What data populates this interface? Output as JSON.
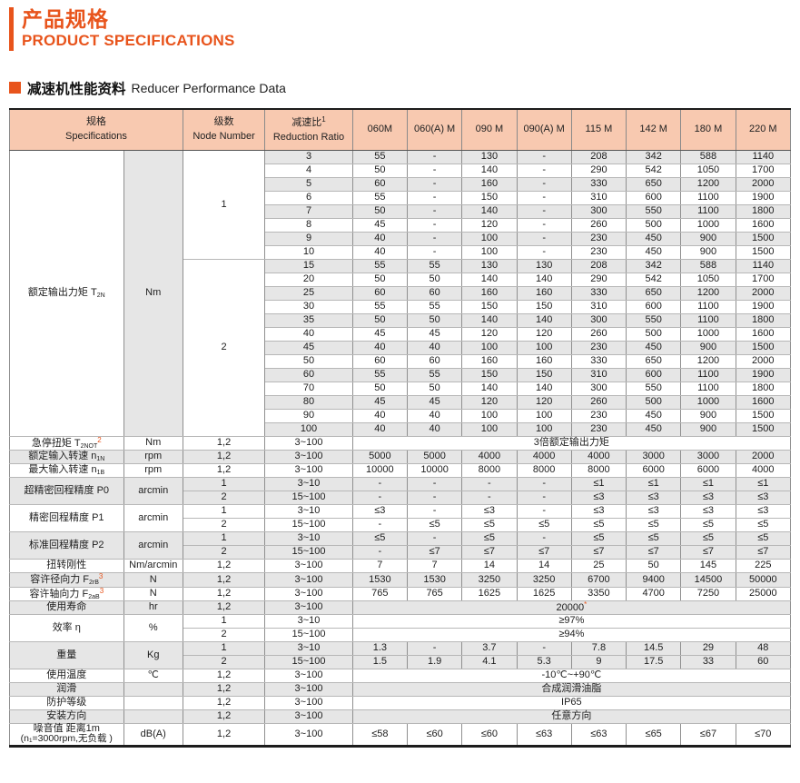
{
  "page": {
    "title_cn": "产品规格",
    "title_en": "PRODUCT SPECIFICATIONS",
    "section_cn": "减速机性能资料",
    "section_en": "Reducer Performance Data"
  },
  "colors": {
    "accent": "#e8541c",
    "header_bg": "#f8c9b0",
    "stripe": "#e6e6e6"
  },
  "table": {
    "header": {
      "spec_cn": "规格",
      "spec_en": "Specifications",
      "node_cn": "级数",
      "node_en": "Node Number",
      "ratio_cn": "减速比",
      "ratio_sup": "1",
      "ratio_en": "Reduction Ratio",
      "models": [
        "060M",
        "060(A) M",
        "090 M",
        "090(A) M",
        "115 M",
        "142 M",
        "180 M",
        "220 M"
      ]
    },
    "torque": {
      "label": {
        "cn": "额定输出力矩",
        "sym": "T",
        "sub": "2N"
      },
      "unit": "Nm",
      "groups": [
        {
          "node": "1",
          "rows": [
            {
              "ratio": "3",
              "values": [
                "55",
                "-",
                "130",
                "-",
                "208",
                "342",
                "588",
                "1140"
              ]
            },
            {
              "ratio": "4",
              "values": [
                "50",
                "-",
                "140",
                "-",
                "290",
                "542",
                "1050",
                "1700"
              ]
            },
            {
              "ratio": "5",
              "values": [
                "60",
                "-",
                "160",
                "-",
                "330",
                "650",
                "1200",
                "2000"
              ]
            },
            {
              "ratio": "6",
              "values": [
                "55",
                "-",
                "150",
                "-",
                "310",
                "600",
                "1100",
                "1900"
              ]
            },
            {
              "ratio": "7",
              "values": [
                "50",
                "-",
                "140",
                "-",
                "300",
                "550",
                "1100",
                "1800"
              ]
            },
            {
              "ratio": "8",
              "values": [
                "45",
                "-",
                "120",
                "-",
                "260",
                "500",
                "1000",
                "1600"
              ]
            },
            {
              "ratio": "9",
              "values": [
                "40",
                "-",
                "100",
                "-",
                "230",
                "450",
                "900",
                "1500"
              ]
            },
            {
              "ratio": "10",
              "values": [
                "40",
                "-",
                "100",
                "-",
                "230",
                "450",
                "900",
                "1500"
              ]
            }
          ]
        },
        {
          "node": "2",
          "rows": [
            {
              "ratio": "15",
              "values": [
                "55",
                "55",
                "130",
                "130",
                "208",
                "342",
                "588",
                "1140"
              ]
            },
            {
              "ratio": "20",
              "values": [
                "50",
                "50",
                "140",
                "140",
                "290",
                "542",
                "1050",
                "1700"
              ]
            },
            {
              "ratio": "25",
              "values": [
                "60",
                "60",
                "160",
                "160",
                "330",
                "650",
                "1200",
                "2000"
              ]
            },
            {
              "ratio": "30",
              "values": [
                "55",
                "55",
                "150",
                "150",
                "310",
                "600",
                "1100",
                "1900"
              ]
            },
            {
              "ratio": "35",
              "values": [
                "50",
                "50",
                "140",
                "140",
                "300",
                "550",
                "1100",
                "1800"
              ]
            },
            {
              "ratio": "40",
              "values": [
                "45",
                "45",
                "120",
                "120",
                "260",
                "500",
                "1000",
                "1600"
              ]
            },
            {
              "ratio": "45",
              "values": [
                "40",
                "40",
                "100",
                "100",
                "230",
                "450",
                "900",
                "1500"
              ]
            },
            {
              "ratio": "50",
              "values": [
                "60",
                "60",
                "160",
                "160",
                "330",
                "650",
                "1200",
                "2000"
              ]
            },
            {
              "ratio": "60",
              "values": [
                "55",
                "55",
                "150",
                "150",
                "310",
                "600",
                "1100",
                "1900"
              ]
            },
            {
              "ratio": "70",
              "values": [
                "50",
                "50",
                "140",
                "140",
                "300",
                "550",
                "1100",
                "1800"
              ]
            },
            {
              "ratio": "80",
              "values": [
                "45",
                "45",
                "120",
                "120",
                "260",
                "500",
                "1000",
                "1600"
              ]
            },
            {
              "ratio": "90",
              "values": [
                "40",
                "40",
                "100",
                "100",
                "230",
                "450",
                "900",
                "1500"
              ]
            },
            {
              "ratio": "100",
              "values": [
                "40",
                "40",
                "100",
                "100",
                "230",
                "450",
                "900",
                "1500"
              ]
            }
          ]
        }
      ]
    },
    "rows": [
      {
        "label": {
          "cn": "急停扭矩",
          "sym": "T",
          "sub": "2NOT",
          "fn": "2"
        },
        "unit": "Nm",
        "gray": false,
        "sub": [
          {
            "node": "1,2",
            "ratio": "3~100",
            "merged": "3倍额定输出力矩"
          }
        ]
      },
      {
        "label": {
          "cn": "额定输入转速",
          "sym": "n",
          "sub": "1N"
        },
        "unit": "rpm",
        "gray": true,
        "sub": [
          {
            "node": "1,2",
            "ratio": "3~100",
            "values": [
              "5000",
              "5000",
              "4000",
              "4000",
              "4000",
              "3000",
              "3000",
              "2000"
            ]
          }
        ]
      },
      {
        "label": {
          "cn": "最大输入转速",
          "sym": "n",
          "sub": "1B"
        },
        "unit": "rpm",
        "gray": false,
        "sub": [
          {
            "node": "1,2",
            "ratio": "3~100",
            "values": [
              "10000",
              "10000",
              "8000",
              "8000",
              "8000",
              "6000",
              "6000",
              "4000"
            ]
          }
        ]
      },
      {
        "label": {
          "cn": "超精密回程精度 P0"
        },
        "unit": "arcmin",
        "gray": true,
        "sub": [
          {
            "node": "1",
            "ratio": "3~10",
            "values": [
              "-",
              "-",
              "-",
              "-",
              "≤1",
              "≤1",
              "≤1",
              "≤1"
            ]
          },
          {
            "node": "2",
            "ratio": "15~100",
            "values": [
              "-",
              "-",
              "-",
              "-",
              "≤3",
              "≤3",
              "≤3",
              "≤3"
            ]
          }
        ]
      },
      {
        "label": {
          "cn": "精密回程精度 P1"
        },
        "unit": "arcmin",
        "gray": false,
        "sub": [
          {
            "node": "1",
            "ratio": "3~10",
            "values": [
              "≤3",
              "-",
              "≤3",
              "-",
              "≤3",
              "≤3",
              "≤3",
              "≤3"
            ]
          },
          {
            "node": "2",
            "ratio": "15~100",
            "values": [
              "-",
              "≤5",
              "≤5",
              "≤5",
              "≤5",
              "≤5",
              "≤5",
              "≤5"
            ]
          }
        ]
      },
      {
        "label": {
          "cn": "标准回程精度 P2"
        },
        "unit": "arcmin",
        "gray": true,
        "sub": [
          {
            "node": "1",
            "ratio": "3~10",
            "values": [
              "≤5",
              "-",
              "≤5",
              "-",
              "≤5",
              "≤5",
              "≤5",
              "≤5"
            ]
          },
          {
            "node": "2",
            "ratio": "15~100",
            "values": [
              "-",
              "≤7",
              "≤7",
              "≤7",
              "≤7",
              "≤7",
              "≤7",
              "≤7"
            ]
          }
        ]
      },
      {
        "label": {
          "cn": "扭转刚性"
        },
        "unit": "Nm/arcmin",
        "gray": false,
        "sub": [
          {
            "node": "1,2",
            "ratio": "3~100",
            "values": [
              "7",
              "7",
              "14",
              "14",
              "25",
              "50",
              "145",
              "225"
            ]
          }
        ]
      },
      {
        "label": {
          "cn": "容许径向力",
          "sym": "F",
          "sub": "2rB",
          "fn": "3"
        },
        "unit": "N",
        "gray": true,
        "sub": [
          {
            "node": "1,2",
            "ratio": "3~100",
            "values": [
              "1530",
              "1530",
              "3250",
              "3250",
              "6700",
              "9400",
              "14500",
              "50000"
            ]
          }
        ]
      },
      {
        "label": {
          "cn": "容许轴向力",
          "sym": "F",
          "sub": "2aB",
          "fn": "3"
        },
        "unit": "N",
        "gray": false,
        "sub": [
          {
            "node": "1,2",
            "ratio": "3~100",
            "values": [
              "765",
              "765",
              "1625",
              "1625",
              "3350",
              "4700",
              "7250",
              "25000"
            ]
          }
        ]
      },
      {
        "label": {
          "cn": "使用寿命"
        },
        "unit": "hr",
        "gray": true,
        "sub": [
          {
            "node": "1,2",
            "ratio": "3~100",
            "merged": "20000",
            "star": "*"
          }
        ]
      },
      {
        "label": {
          "cn": "效率 η"
        },
        "unit": "%",
        "gray": false,
        "sub": [
          {
            "node": "1",
            "ratio": "3~10",
            "merged": "≥97%"
          },
          {
            "node": "2",
            "ratio": "15~100",
            "merged": "≥94%"
          }
        ]
      },
      {
        "label": {
          "cn": "重量"
        },
        "unit": "Kg",
        "gray": true,
        "sub": [
          {
            "node": "1",
            "ratio": "3~10",
            "values": [
              "1.3",
              "-",
              "3.7",
              "-",
              "7.8",
              "14.5",
              "29",
              "48"
            ]
          },
          {
            "node": "2",
            "ratio": "15~100",
            "values": [
              "1.5",
              "1.9",
              "4.1",
              "5.3",
              "9",
              "17.5",
              "33",
              "60"
            ]
          }
        ]
      },
      {
        "label": {
          "cn": "使用温度"
        },
        "unit": "℃",
        "gray": false,
        "sub": [
          {
            "node": "1,2",
            "ratio": "3~100",
            "merged": "-10℃~+90℃"
          }
        ]
      },
      {
        "label": {
          "cn": "润滑"
        },
        "unit": "",
        "gray": true,
        "sub": [
          {
            "node": "1,2",
            "ratio": "3~100",
            "merged": "合成润滑油脂"
          }
        ]
      },
      {
        "label": {
          "cn": "防护等级"
        },
        "unit": "",
        "gray": false,
        "sub": [
          {
            "node": "1,2",
            "ratio": "3~100",
            "merged": "IP65"
          }
        ]
      },
      {
        "label": {
          "cn": "安装方向"
        },
        "unit": "",
        "gray": true,
        "sub": [
          {
            "node": "1,2",
            "ratio": "3~100",
            "merged": "任意方向"
          }
        ]
      },
      {
        "label": {
          "cn": "噪音值 距离1m",
          "line2": "(n₁=3000rpm,无负载 )"
        },
        "unit": "dB(A)",
        "gray": false,
        "tall": true,
        "sub": [
          {
            "node": "1,2",
            "ratio": "3~100",
            "values": [
              "≤58",
              "≤60",
              "≤60",
              "≤63",
              "≤63",
              "≤65",
              "≤67",
              "≤70"
            ]
          }
        ]
      }
    ]
  }
}
